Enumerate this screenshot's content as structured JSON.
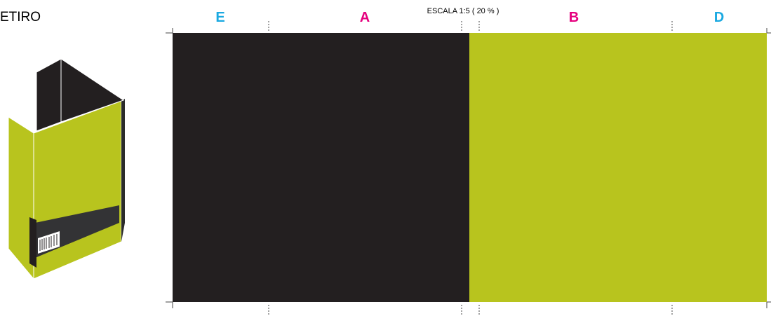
{
  "header": {
    "title": "ETIRO",
    "scale": "ESCALA 1:5  ( 20 % )"
  },
  "panels": [
    {
      "label": "E"
    },
    {
      "label": "A"
    },
    {
      "label": "B"
    },
    {
      "label": "D"
    }
  ]
}
